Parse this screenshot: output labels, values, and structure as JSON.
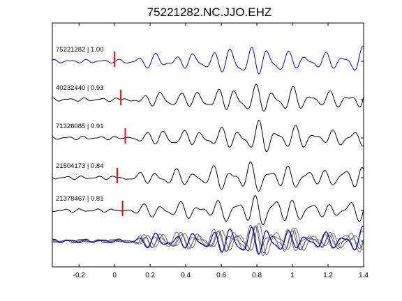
{
  "chart_data": {
    "type": "line",
    "title": "75221282.NC.JJO.EHZ",
    "xlabel": "",
    "ylabel": "",
    "xlim": [
      -0.35,
      1.4
    ],
    "xticks": [
      -0.2,
      0,
      0.2,
      0.4,
      0.6,
      0.8,
      1,
      1.2,
      1.4
    ],
    "xtick_labels": [
      "-0.2",
      "0",
      "0.2",
      "0.4",
      "0.6",
      "0.8",
      "1",
      "1.2",
      "1.4"
    ],
    "grid": false,
    "legend": "none",
    "colors": {
      "reference": "#0000cc",
      "trace": "#000000",
      "stack": "#666666",
      "pick": "#ff0000"
    },
    "series": [
      {
        "label": "75221282 | 1.00",
        "pick_time": 0.0,
        "onset": 0.0,
        "phase": 0.0,
        "amp": 1.0,
        "color": "#0000cc"
      },
      {
        "label": "40232440 | 0.93",
        "pick_time": 0.035,
        "onset": 0.03,
        "phase": 0.6,
        "amp": 1.0,
        "color": "#000000"
      },
      {
        "label": "71326085 | 0.91",
        "pick_time": 0.06,
        "onset": 0.05,
        "phase": 1.1,
        "amp": 1.0,
        "color": "#000000"
      },
      {
        "label": "21504173 | 0.84",
        "pick_time": 0.015,
        "onset": 0.01,
        "phase": 1.7,
        "amp": 1.0,
        "color": "#000000"
      },
      {
        "label": "21378467 | 0.81",
        "pick_time": 0.045,
        "onset": 0.04,
        "phase": 2.3,
        "amp": 1.0,
        "color": "#000000"
      }
    ]
  }
}
